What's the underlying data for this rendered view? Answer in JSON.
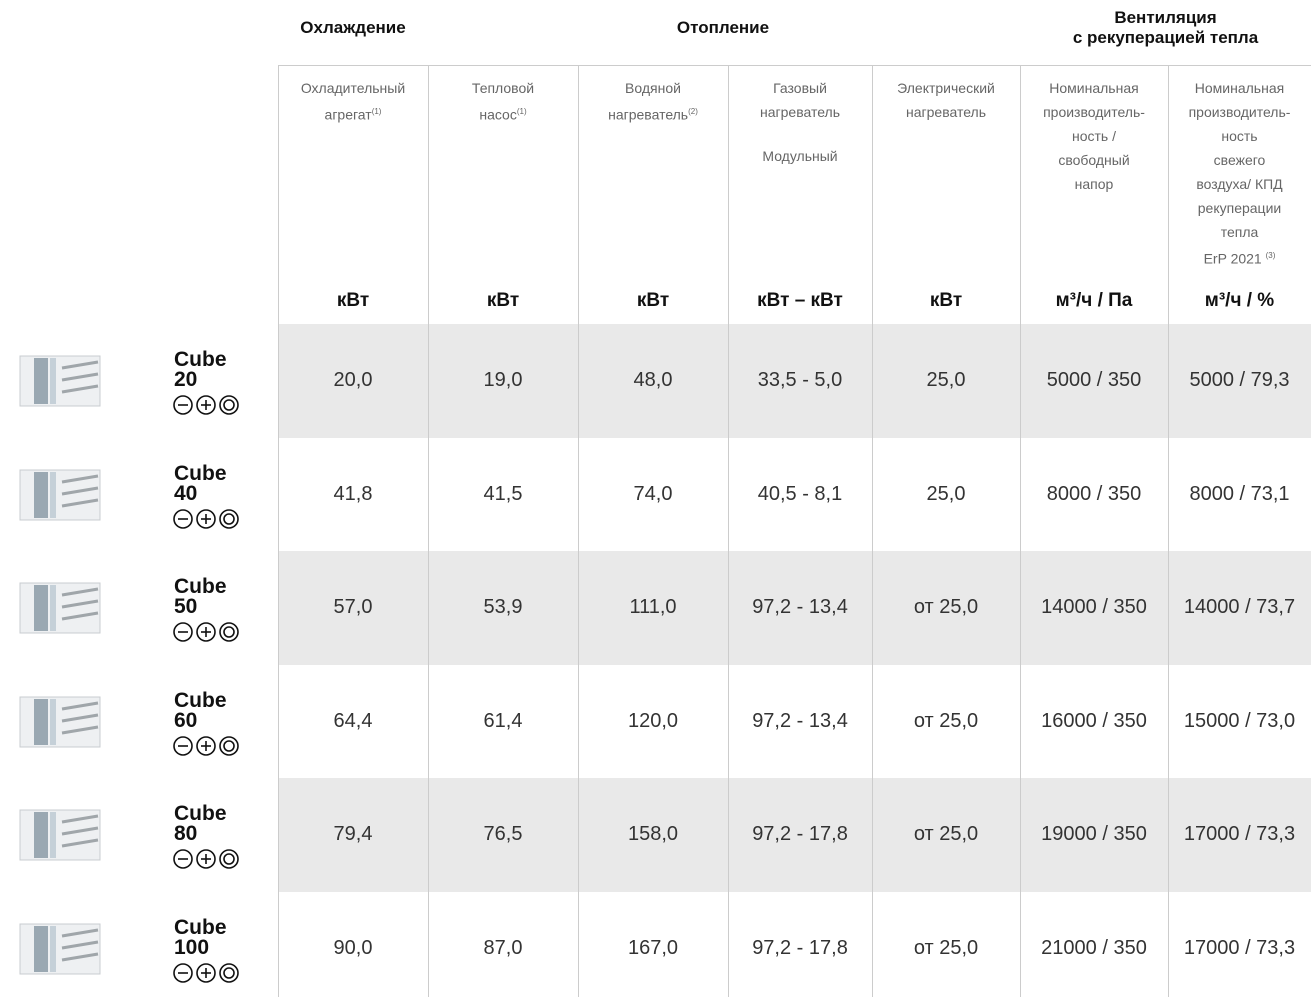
{
  "header": {
    "groups": [
      {
        "lines": [
          "Охлаждение"
        ]
      },
      {
        "lines": [
          "Отопление"
        ]
      },
      {
        "lines": [
          "Вентиляция",
          "с рекуперацией тепла"
        ]
      }
    ],
    "columns": [
      {
        "lines": [
          "Охладительный",
          "агрегат"
        ],
        "note": "(1)",
        "unit": "кВт"
      },
      {
        "lines": [
          "Тепловой",
          "насос"
        ],
        "note": "(1)",
        "unit": "кВт"
      },
      {
        "lines": [
          "Водяной",
          "нагреватель"
        ],
        "note": "(2)",
        "unit": "кВт"
      },
      {
        "lines": [
          "Газовый",
          "нагреватель"
        ],
        "modifier": "Модульный",
        "unit": "кВт – кВт"
      },
      {
        "lines": [
          "Электрический",
          "нагреватель"
        ],
        "unit": "кВт"
      },
      {
        "lines": [
          "Номинальная",
          "производитель-",
          "ность /",
          "свободный",
          "напор"
        ],
        "unit": "м³/ч / Па"
      },
      {
        "lines": [
          "Номинальная",
          "производитель-",
          "ность",
          "свежего",
          "воздуха/ КПД",
          "рекуперации",
          "тепла",
          "ErP 2021"
        ],
        "note": "(3)",
        "unit": "м³/ч / %"
      }
    ]
  },
  "table": {
    "rows": [
      {
        "model": "Cube",
        "size": "20",
        "values": [
          "20,0",
          "19,0",
          "48,0",
          "33,5 - 5,0",
          "25,0",
          "5000 / 350",
          "5000 / 79,3"
        ]
      },
      {
        "model": "Cube",
        "size": "40",
        "values": [
          "41,8",
          "41,5",
          "74,0",
          "40,5 - 8,1",
          "25,0",
          "8000 / 350",
          "8000 / 73,1"
        ]
      },
      {
        "model": "Cube",
        "size": "50",
        "values": [
          "57,0",
          "53,9",
          "111,0",
          "97,2 - 13,4",
          "от 25,0",
          "14000 / 350",
          "14000 / 73,7"
        ]
      },
      {
        "model": "Cube",
        "size": "60",
        "values": [
          "64,4",
          "61,4",
          "120,0",
          "97,2 - 13,4",
          "от 25,0",
          "16000 / 350",
          "15000 / 73,0"
        ]
      },
      {
        "model": "Cube",
        "size": "80",
        "values": [
          "79,4",
          "76,5",
          "158,0",
          "97,2 - 17,8",
          "от 25,0",
          "19000 / 350",
          "17000 / 73,3"
        ]
      },
      {
        "model": "Cube",
        "size": "100",
        "values": [
          "90,0",
          "87,0",
          "167,0",
          "97,2 - 17,8",
          "от 25,0",
          "21000 / 350",
          "17000 / 73,3"
        ]
      }
    ]
  }
}
